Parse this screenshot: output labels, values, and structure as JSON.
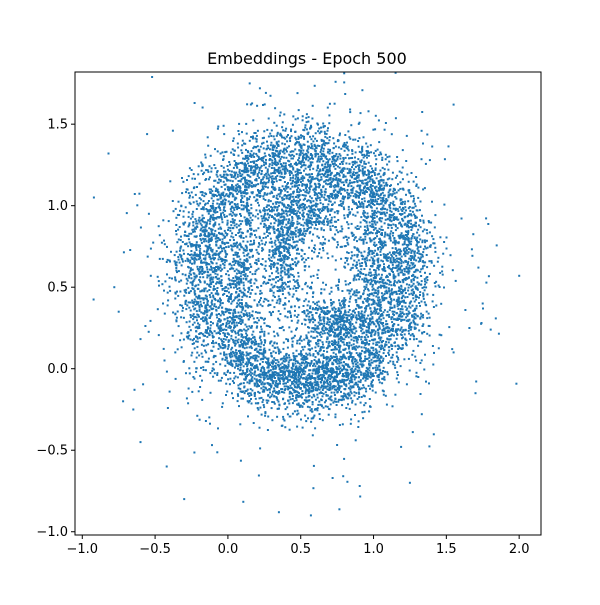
{
  "chart_data": {
    "type": "scatter",
    "title": "Embeddings - Epoch 500",
    "xlabel": "",
    "ylabel": "",
    "xlim": [
      -1.05,
      2.15
    ],
    "ylim": [
      -1.02,
      1.82
    ],
    "x_ticks": [
      -1.0,
      -0.5,
      0.0,
      0.5,
      1.0,
      1.5,
      2.0
    ],
    "x_tick_labels": [
      "−1.0",
      "−0.5",
      "0.0",
      "0.5",
      "1.0",
      "1.5",
      "2.0"
    ],
    "y_ticks": [
      -1.0,
      -0.5,
      0.0,
      0.5,
      1.0,
      1.5
    ],
    "y_tick_labels": [
      "−1.0",
      "−0.5",
      "0.0",
      "0.5",
      "1.0",
      "1.5"
    ],
    "grid": false,
    "marker_color": "#1f77b4",
    "marker_size": 2,
    "series": [
      {
        "distribution": "noisy ring with internal spiral arms",
        "ring_center": [
          0.52,
          0.6
        ],
        "ring_radius": [
          0.7,
          0.7
        ],
        "inner_hole_center": [
          0.5,
          0.45
        ],
        "point_count_approx": 30000,
        "outliers": [
          [
            -0.92,
            1.05
          ],
          [
            -0.82,
            1.32
          ],
          [
            -0.78,
            0.5
          ],
          [
            -0.75,
            0.35
          ],
          [
            -0.72,
            -0.2
          ],
          [
            -0.65,
            -0.25
          ],
          [
            -0.6,
            -0.45
          ],
          [
            -0.42,
            -0.6
          ],
          [
            -0.3,
            -0.8
          ],
          [
            0.15,
            1.75
          ],
          [
            0.22,
            1.72
          ],
          [
            0.35,
            -0.88
          ],
          [
            0.57,
            -0.9
          ],
          [
            1.55,
            1.62
          ],
          [
            1.72,
            0.62
          ],
          [
            2.0,
            0.57
          ],
          [
            1.7,
            -0.15
          ],
          [
            1.55,
            0.1
          ],
          [
            1.75,
            0.4
          ],
          [
            1.25,
            -0.7
          ],
          [
            -0.15,
            0.1
          ],
          [
            -0.32,
            1.0
          ]
        ]
      }
    ]
  }
}
